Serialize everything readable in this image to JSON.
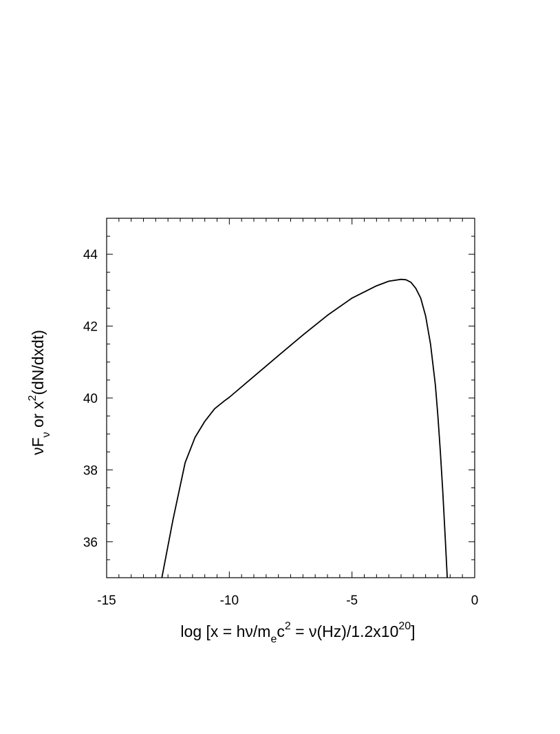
{
  "chart_data": {
    "type": "line",
    "xlabel": {
      "prefix": "log [x = h",
      "nu1": "ν",
      "mid1": "/m",
      "sub_e": "e",
      "mid2": "c",
      "sup2": "2",
      "mid3": " = ",
      "nu2": "ν",
      "mid4": "(Hz)/1.2x10",
      "sup20": "20",
      "suffix": "]"
    },
    "ylabel": {
      "nu": "ν",
      "F": "F",
      "sub_nu": "ν",
      "or_x": "  or  x",
      "sup2": "2",
      "rest": "(dN/dxdt)"
    },
    "xlim": [
      -15,
      0
    ],
    "ylim": [
      35,
      45
    ],
    "x_ticks": [
      -15,
      -10,
      -5,
      0
    ],
    "x_tick_labels": [
      "-15",
      "-10",
      "-5",
      "0"
    ],
    "y_ticks": [
      36,
      38,
      40,
      42,
      44
    ],
    "y_tick_labels": [
      "36",
      "38",
      "40",
      "42",
      "44"
    ],
    "grid": false,
    "series": [
      {
        "color": "#000000",
        "x": [
          -12.75,
          -12.3,
          -11.8,
          -11.4,
          -11.0,
          -10.6,
          -10.2,
          -10.0,
          -9.0,
          -8.0,
          -7.0,
          -6.0,
          -5.0,
          -4.0,
          -3.5,
          -3.0,
          -2.8,
          -2.6,
          -2.4,
          -2.2,
          -2.0,
          -1.8,
          -1.6,
          -1.5,
          -1.4,
          -1.3,
          -1.2,
          -1.12
        ],
        "y": [
          35.0,
          36.6,
          38.2,
          38.9,
          39.35,
          39.7,
          39.92,
          40.02,
          40.6,
          41.18,
          41.75,
          42.3,
          42.78,
          43.12,
          43.25,
          43.3,
          43.29,
          43.22,
          43.05,
          42.78,
          42.28,
          41.5,
          40.35,
          39.5,
          38.5,
          37.4,
          36.1,
          35.0
        ]
      }
    ]
  }
}
